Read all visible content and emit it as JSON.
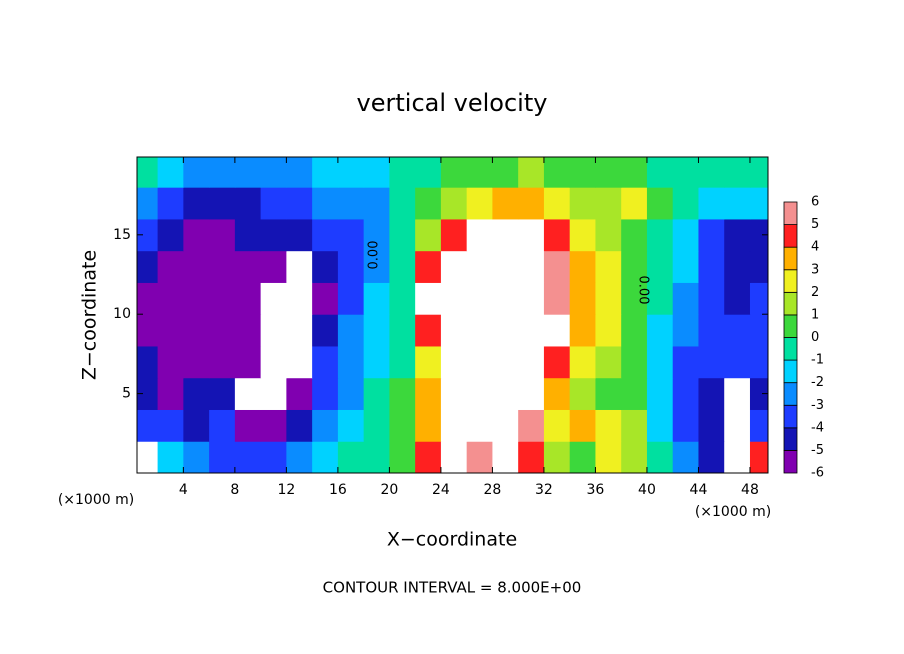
{
  "chart_data": {
    "type": "contour",
    "title": "vertical velocity",
    "x_label": "X−coordinate",
    "y_label": "Z−coordinate",
    "x_unit_left": "(×1000 m)",
    "x_unit_right": "(×1000 m)",
    "footer": "CONTOUR INTERVAL = 8.000E+00",
    "contour_labels": [
      "0.00",
      "0.00"
    ],
    "xlim": [
      0.4,
      49.4
    ],
    "ylim": [
      0,
      19.9
    ],
    "xticks": [
      4,
      8,
      12,
      16,
      20,
      24,
      28,
      32,
      36,
      40,
      44,
      48
    ],
    "yticks": [
      5,
      10,
      15
    ],
    "x": [
      1,
      3,
      5,
      7,
      9,
      11,
      13,
      15,
      17,
      19,
      21,
      23,
      25,
      27,
      29,
      31,
      33,
      35,
      37,
      39,
      41,
      43,
      45,
      47,
      49
    ],
    "y": [
      1,
      3,
      5,
      7,
      9,
      11,
      13,
      15,
      17,
      19
    ],
    "z": [
      [
        9,
        -1,
        -2,
        -3,
        -3,
        -3,
        -2,
        -1,
        0,
        0,
        1,
        5,
        8,
        6,
        8,
        5,
        2,
        1,
        3,
        2,
        0,
        -2,
        -4,
        -8,
        5
      ],
      [
        -3,
        -3,
        -4,
        -3,
        -5,
        -5,
        -4,
        -2,
        -1,
        0,
        1,
        4,
        9,
        9,
        9,
        6,
        3,
        4,
        3,
        2,
        -1,
        -3,
        -4,
        -8,
        -3
      ],
      [
        -4,
        -5,
        -4,
        -4,
        -8,
        -8,
        -5,
        -3,
        -2,
        0,
        1,
        4,
        9,
        9,
        9,
        9,
        4,
        2,
        1,
        1,
        -1,
        -3,
        -4,
        -8,
        -4
      ],
      [
        -4,
        -5,
        -5,
        -5,
        -5,
        -8,
        -8,
        -3,
        -2,
        -1,
        0,
        3,
        9,
        9,
        9,
        9,
        5,
        3,
        2,
        1,
        -1,
        -3,
        -3,
        -3,
        -3
      ],
      [
        -5,
        -5,
        -5,
        -5,
        -6,
        -8,
        -8,
        -4,
        -2,
        -1,
        0,
        5,
        9,
        9,
        9,
        9,
        8,
        4,
        3,
        1,
        -1,
        -2,
        -3,
        -3,
        -3
      ],
      [
        -5,
        -5,
        -6,
        -5,
        -5,
        -8,
        -8,
        -5,
        -3,
        -1,
        0,
        9,
        9,
        9,
        9,
        9,
        6,
        4,
        3,
        1,
        0,
        -2,
        -3,
        -4,
        -3
      ],
      [
        -4,
        -5,
        -5,
        -5,
        -5,
        -5,
        -8,
        -4,
        -3,
        -2,
        0,
        5,
        9,
        9,
        9,
        9,
        6,
        4,
        3,
        1,
        0,
        -1,
        -3,
        -4,
        -4
      ],
      [
        -3,
        -4,
        -5,
        -5,
        -4,
        -4,
        -4,
        -3,
        -3,
        -2,
        0,
        2,
        5,
        9,
        9,
        9,
        5,
        3,
        2,
        1,
        0,
        -1,
        -3,
        -4,
        -4
      ],
      [
        -2,
        -3,
        -4,
        -4,
        -4,
        -3,
        -3,
        -2,
        -2,
        -2,
        0,
        1,
        2,
        3,
        4,
        4,
        3,
        2,
        2,
        3,
        1,
        0,
        -1,
        -1,
        -1
      ],
      [
        0,
        -1,
        -2,
        -2,
        -2,
        -2,
        -2,
        -1,
        -1,
        -1,
        0,
        0,
        1,
        1,
        1,
        2,
        1,
        1,
        1,
        1,
        0,
        0,
        0,
        0,
        0
      ]
    ],
    "colorbar_ticks": [
      -6,
      -5,
      -4,
      -3,
      -2,
      -1,
      0,
      1,
      2,
      3,
      4,
      5,
      6
    ],
    "colors": [
      "#8000b0",
      "#1414b4",
      "#1e3cff",
      "#0a8cff",
      "#00d2ff",
      "#00e0a0",
      "#3cd83c",
      "#a8e628",
      "#f0f020",
      "#ffb000",
      "#ff2020",
      "#f49090"
    ],
    "out_of_range_color": "#ffffff"
  }
}
